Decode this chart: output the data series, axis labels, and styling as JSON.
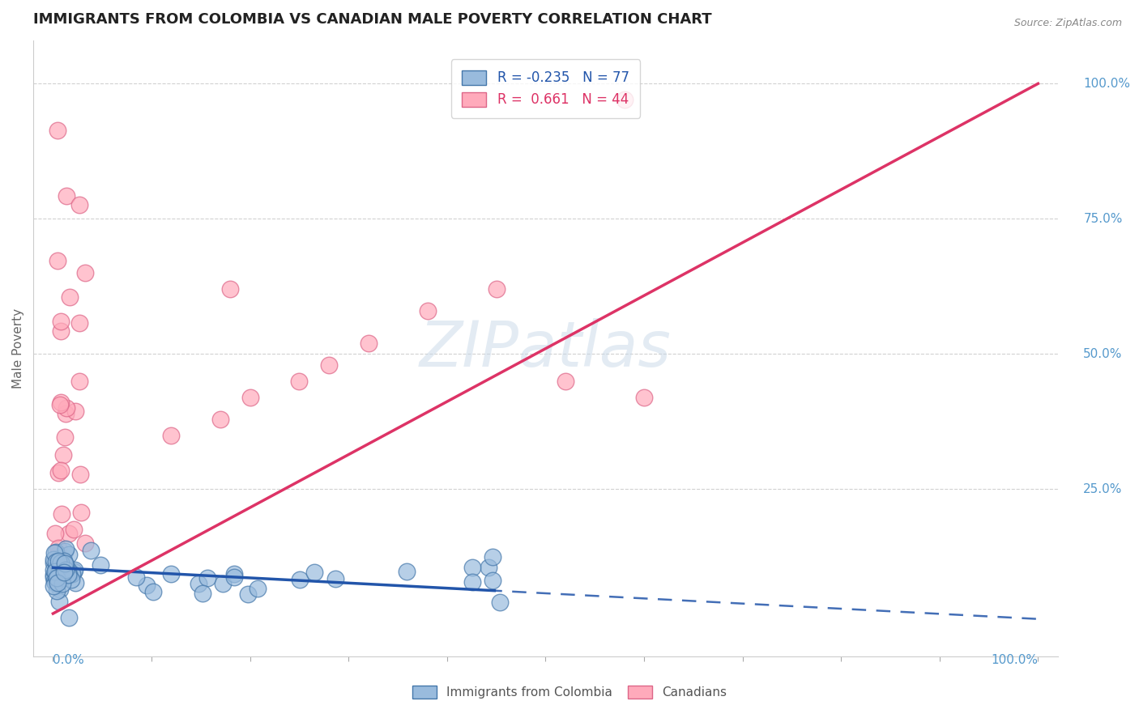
{
  "title": "IMMIGRANTS FROM COLOMBIA VS CANADIAN MALE POVERTY CORRELATION CHART",
  "source": "Source: ZipAtlas.com",
  "ylabel": "Male Poverty",
  "series": [
    {
      "name": "Immigrants from Colombia",
      "R": -0.235,
      "N": 77,
      "face_color": "#99BBDD",
      "edge_color": "#4477AA",
      "line_color": "#2255AA"
    },
    {
      "name": "Canadians",
      "R": 0.661,
      "N": 44,
      "face_color": "#FFAABB",
      "edge_color": "#DD6688",
      "line_color": "#DD3366"
    }
  ],
  "grid_color": "#cccccc",
  "watermark": "ZIPatlas",
  "watermark_color": "#C8D8E8",
  "background_color": "#ffffff",
  "title_color": "#222222",
  "title_fontsize": 13,
  "right_axis_color": "#5599CC"
}
